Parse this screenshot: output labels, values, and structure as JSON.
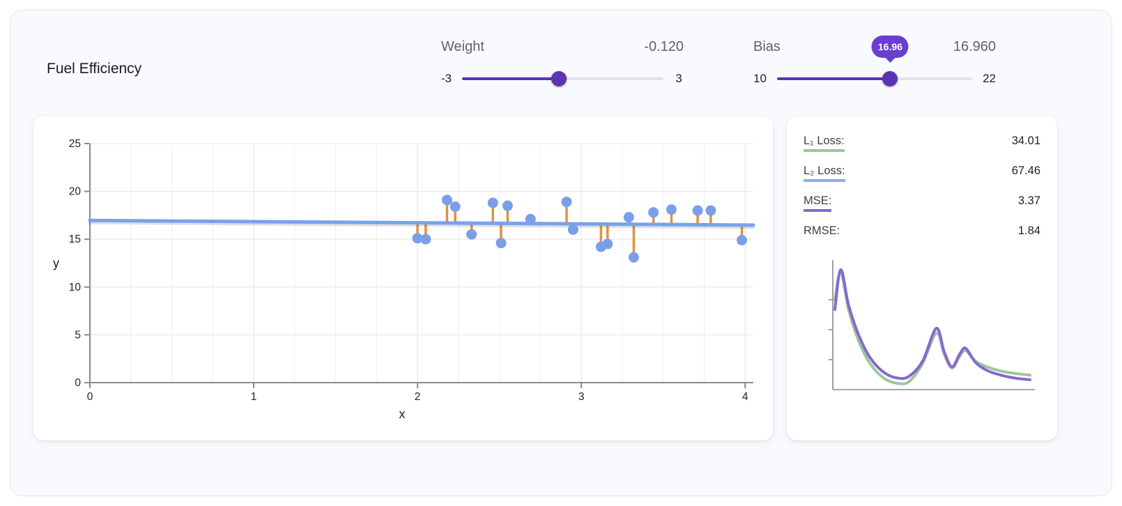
{
  "title": "Fuel Efficiency",
  "controls": {
    "weight": {
      "label": "Weight",
      "value": -0.12,
      "value_display": "-0.120",
      "min": -3,
      "max": 3,
      "min_label": "-3",
      "max_label": "3"
    },
    "bias": {
      "label": "Bias",
      "value": 16.96,
      "value_display": "16.960",
      "min": 10,
      "max": 22,
      "min_label": "10",
      "max_label": "22",
      "tooltip": "16.96"
    }
  },
  "metrics": {
    "rows": [
      {
        "label": "L₁ Loss:",
        "value": "34.01",
        "underline": "#9dc69d"
      },
      {
        "label": "L₂ Loss:",
        "value": "67.46",
        "underline": "#85aef5"
      },
      {
        "label": "MSE:",
        "value": "3.37",
        "underline": "#8668d0"
      },
      {
        "label": "RMSE:",
        "value": "1.84",
        "underline": ""
      }
    ]
  },
  "chart_data": [
    {
      "type": "scatter",
      "name": "model-fit",
      "title": "",
      "xlabel": "x",
      "ylabel": "y",
      "xlim": [
        0,
        4.05
      ],
      "ylim": [
        0,
        25
      ],
      "xticks": [
        0,
        1,
        2,
        3,
        4
      ],
      "yticks": [
        0,
        5,
        10,
        15,
        20,
        25
      ],
      "minor_x_step": 0.25,
      "grid": true,
      "points": [
        [
          2.0,
          15.1
        ],
        [
          2.05,
          15.0
        ],
        [
          2.18,
          19.1
        ],
        [
          2.23,
          18.4
        ],
        [
          2.33,
          15.5
        ],
        [
          2.46,
          18.8
        ],
        [
          2.51,
          14.6
        ],
        [
          2.55,
          18.5
        ],
        [
          2.69,
          17.1
        ],
        [
          2.91,
          18.9
        ],
        [
          2.95,
          16.0
        ],
        [
          3.12,
          14.2
        ],
        [
          3.16,
          14.5
        ],
        [
          3.29,
          17.3
        ],
        [
          3.32,
          13.1
        ],
        [
          3.44,
          17.8
        ],
        [
          3.55,
          18.1
        ],
        [
          3.71,
          18.0
        ],
        [
          3.79,
          18.0
        ],
        [
          3.98,
          14.9
        ]
      ],
      "model_line": {
        "weight": -0.12,
        "bias": 16.96
      },
      "show_residuals": true,
      "colors": {
        "point": "#7a9fe8",
        "line": "#78a2ec",
        "residual": "#e0913f",
        "grid": "#e3e4ea",
        "axis": "#85898f",
        "text": "#1f1f1f"
      }
    },
    {
      "type": "line",
      "name": "loss-history",
      "xlim": [
        0,
        1
      ],
      "ylim": [
        0,
        1
      ],
      "grid": false,
      "legend_position": "none",
      "axis_color": "#85898f",
      "series": [
        {
          "name": "L1 loss",
          "color": "#9dc69d",
          "points": [
            [
              0,
              0.74
            ],
            [
              0.03,
              0.98
            ],
            [
              0.07,
              0.66
            ],
            [
              0.12,
              0.4
            ],
            [
              0.18,
              0.2
            ],
            [
              0.25,
              0.075
            ],
            [
              0.32,
              0.03
            ],
            [
              0.38,
              0.045
            ],
            [
              0.45,
              0.2
            ],
            [
              0.52,
              0.46
            ],
            [
              0.56,
              0.28
            ],
            [
              0.6,
              0.16
            ],
            [
              0.64,
              0.26
            ],
            [
              0.67,
              0.31
            ],
            [
              0.72,
              0.22
            ],
            [
              0.78,
              0.17
            ],
            [
              0.85,
              0.135
            ],
            [
              0.92,
              0.115
            ],
            [
              1,
              0.1
            ]
          ]
        },
        {
          "name": "MSE",
          "color": "#8668d0",
          "points": [
            [
              0,
              0.66
            ],
            [
              0.03,
              1.0
            ],
            [
              0.07,
              0.7
            ],
            [
              0.12,
              0.45
            ],
            [
              0.18,
              0.25
            ],
            [
              0.25,
              0.125
            ],
            [
              0.32,
              0.075
            ],
            [
              0.38,
              0.09
            ],
            [
              0.45,
              0.22
            ],
            [
              0.52,
              0.5
            ],
            [
              0.56,
              0.3
            ],
            [
              0.6,
              0.17
            ],
            [
              0.64,
              0.28
            ],
            [
              0.67,
              0.33
            ],
            [
              0.72,
              0.21
            ],
            [
              0.78,
              0.14
            ],
            [
              0.85,
              0.1
            ],
            [
              0.92,
              0.075
            ],
            [
              1,
              0.06
            ]
          ]
        }
      ]
    }
  ]
}
